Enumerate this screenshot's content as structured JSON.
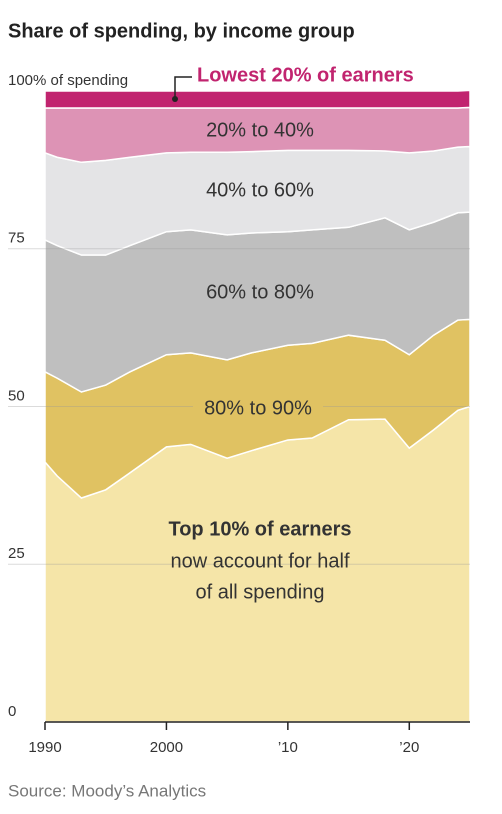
{
  "chart_data": {
    "type": "stacked_area",
    "title": "Share of spending, by income group",
    "source": "Source: Moody’s Analytics",
    "annotation_lines": [
      "now account for half",
      "of all spending"
    ],
    "x": [
      1990,
      1991,
      1993,
      1995,
      1997,
      2000,
      2002,
      2005,
      2007,
      2010,
      2012,
      2015,
      2018,
      2020,
      2022,
      2024,
      2025
    ],
    "xlim": [
      1990,
      2025
    ],
    "xticks": [
      1990,
      2000,
      {
        "value": 2010,
        "label": "’10"
      },
      {
        "value": 2020,
        "label": "’20"
      }
    ],
    "ylim": [
      0,
      100
    ],
    "yticks": [
      0,
      25,
      50,
      75,
      {
        "value": 100,
        "label": "100% of spending"
      }
    ],
    "grid": true,
    "series": [
      {
        "name": "Top 10% of earners",
        "color": "#f5e5a8",
        "values": [
          41.2,
          39,
          35.5,
          36.8,
          39.5,
          43.6,
          44,
          41.8,
          43,
          44.7,
          45,
          47.9,
          48,
          43.4,
          46.3,
          49.4,
          50
        ]
      },
      {
        "name": "80% to 90%",
        "color": "#e0c262",
        "values": [
          14.3,
          15.5,
          16.8,
          16.6,
          16,
          14.6,
          14.5,
          15.6,
          15.5,
          15,
          15,
          13.4,
          12.5,
          14.8,
          15,
          14.3,
          13.8
        ]
      },
      {
        "name": "60% to 80%",
        "color": "#bfbfbf",
        "values": [
          20.9,
          21,
          21.7,
          20.6,
          20,
          19.5,
          19.5,
          19.8,
          19,
          18,
          18,
          17.1,
          19.4,
          19.8,
          17.9,
          17,
          17
        ]
      },
      {
        "name": "40% to 60%",
        "color": "#e4e4e6",
        "values": [
          13.8,
          14,
          14.7,
          15,
          14,
          12.5,
          12.3,
          13.1,
          12.9,
          12.9,
          12.6,
          12.2,
          10.6,
          12.2,
          11.3,
          10.4,
          10.4
        ]
      },
      {
        "name": "20% to 40%",
        "color": "#dd93b5",
        "values": [
          7.1,
          7.8,
          8.6,
          8.3,
          7.8,
          7.1,
          7,
          7,
          6.9,
          6.7,
          6.7,
          6.7,
          6.8,
          7.1,
          6.8,
          6.2,
          6.2
        ]
      },
      {
        "name": "Lowest 20% of earners",
        "color": "#c1246f",
        "values": [
          2.7,
          2.7,
          2.7,
          2.7,
          2.7,
          2.7,
          2.7,
          2.7,
          2.7,
          2.7,
          2.7,
          2.7,
          2.7,
          2.7,
          2.7,
          2.7,
          2.7
        ]
      }
    ]
  }
}
